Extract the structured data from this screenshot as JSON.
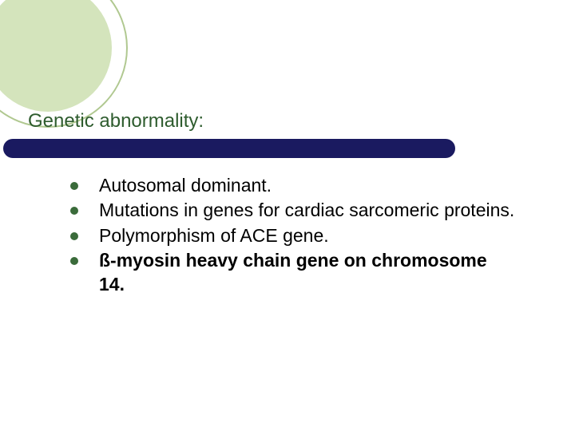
{
  "slide": {
    "title": "Genetic abnormality:",
    "bullets": [
      {
        "text": "Autosomal dominant.",
        "bold": false
      },
      {
        "text": "Mutations in genes for cardiac sarcomeric proteins.",
        "bold": false
      },
      {
        "text": "Polymorphism of ACE gene.",
        "bold": false
      },
      {
        "text": "ß-myosin heavy chain gene on chromosome 14.",
        "bold": true
      }
    ],
    "colors": {
      "corner_fill": "#d4e4bc",
      "corner_stroke": "#b0c890",
      "title_color": "#2e5c2e",
      "underline_color": "#1a1a60",
      "bullet_color": "#3a6b3a",
      "text_color": "#000000",
      "background": "#ffffff"
    },
    "typography": {
      "title_fontsize": 24,
      "body_fontsize": 23
    }
  }
}
